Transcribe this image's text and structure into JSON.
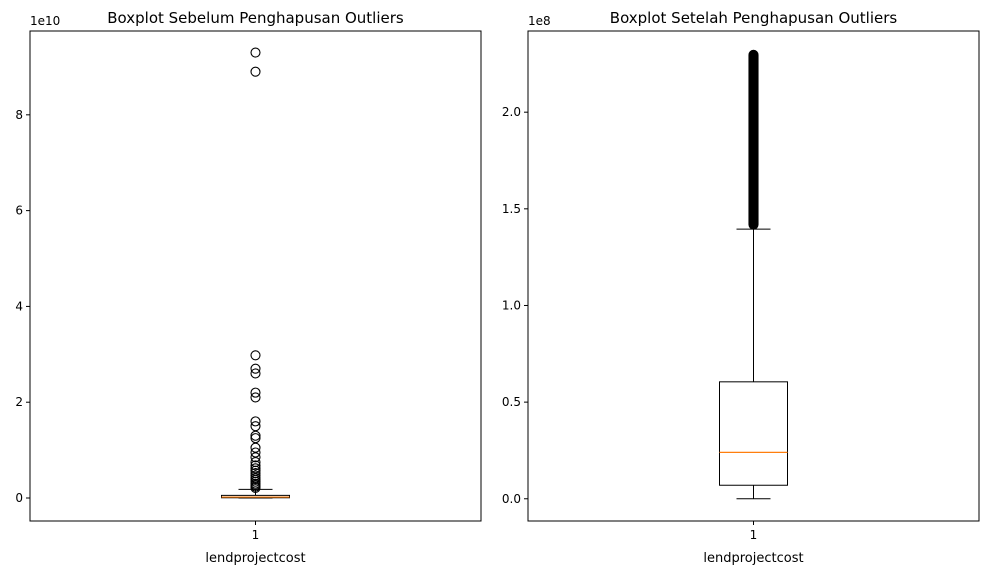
{
  "chart_data": [
    {
      "type": "boxplot",
      "title": "Boxplot Sebelum Penghapusan Outliers",
      "xlabel": "lendprojectcost",
      "categories": [
        "1"
      ],
      "y_multiplier": "1e10",
      "y_tick_values": [
        0,
        2,
        4,
        6,
        8
      ],
      "y_tick_labels": [
        "0",
        "2",
        "4",
        "6",
        "8"
      ],
      "ylim": [
        -0.48,
        9.75
      ],
      "box": {
        "whisker_low": 0.0,
        "q1": 0.005,
        "median": 0.02,
        "q3": 0.055,
        "whisker_high": 0.18
      },
      "outliers": [
        9.3,
        8.9,
        2.98,
        2.7,
        2.6,
        2.2,
        2.1,
        1.6,
        1.5,
        1.3,
        1.25,
        1.05,
        0.95,
        0.85,
        0.75,
        0.68,
        0.62,
        0.57,
        0.52,
        0.47,
        0.42,
        0.38,
        0.34,
        0.3,
        0.27,
        0.24,
        0.21
      ],
      "colors": {
        "box": "#000000",
        "median": "#ff7f0e"
      }
    },
    {
      "type": "boxplot",
      "title": "Boxplot Setelah Penghapusan Outliers",
      "xlabel": "lendprojectcost",
      "categories": [
        "1"
      ],
      "y_multiplier": "1e8",
      "y_tick_values": [
        0,
        0.5,
        1.0,
        1.5,
        2.0
      ],
      "y_tick_labels": [
        "0.0",
        "0.5",
        "1.0",
        "1.5",
        "2.0"
      ],
      "ylim": [
        -0.115,
        2.42
      ],
      "box": {
        "whisker_low": 0.0,
        "q1": 0.07,
        "median": 0.24,
        "q3": 0.605,
        "whisker_high": 1.395
      },
      "outlier_range": [
        1.395,
        2.32
      ],
      "colors": {
        "box": "#000000",
        "median": "#ff7f0e"
      }
    }
  ]
}
